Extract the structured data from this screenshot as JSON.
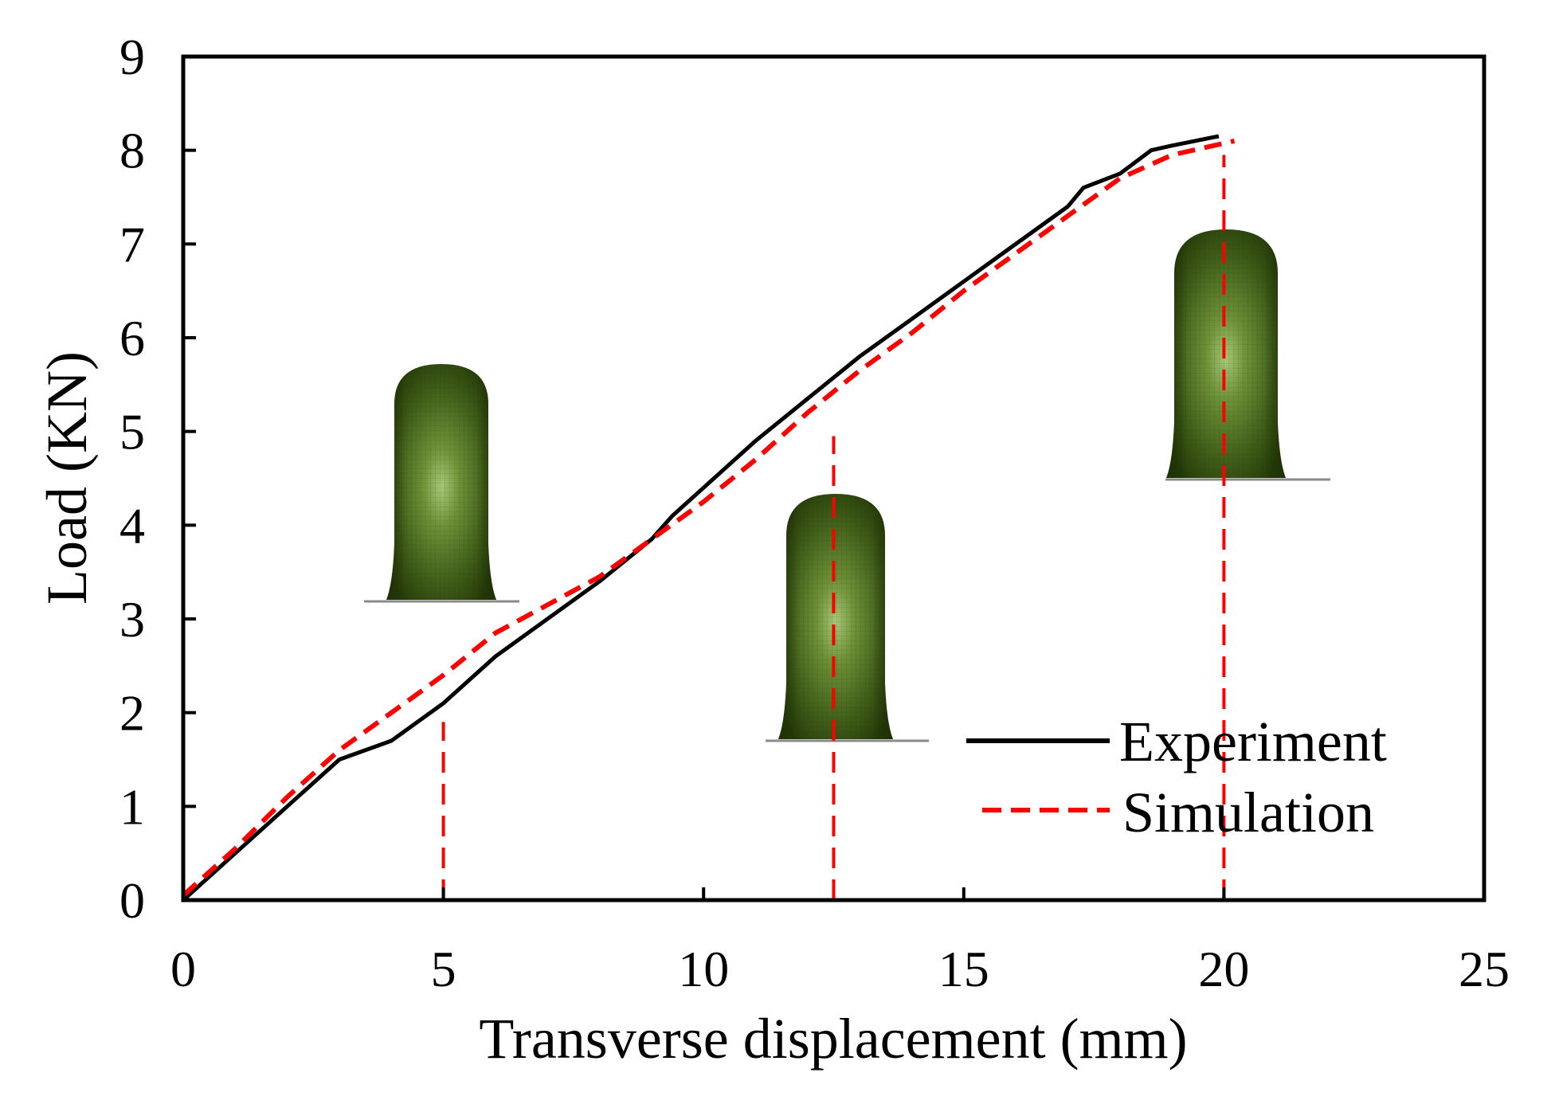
{
  "chart_data": {
    "type": "line",
    "title": "",
    "xlabel": "Transverse displacement (mm)",
    "ylabel": "Load (KN)",
    "xlim": [
      0,
      25
    ],
    "ylim": [
      0,
      9
    ],
    "xticks": [
      0,
      5,
      10,
      15,
      20,
      25
    ],
    "yticks": [
      0,
      1,
      2,
      3,
      4,
      5,
      6,
      7,
      8,
      9
    ],
    "xtick_labels": [
      "0",
      "5",
      "10",
      "15",
      "20",
      "25"
    ],
    "ytick_labels": [
      "0",
      "1",
      "2",
      "3",
      "4",
      "5",
      "6",
      "7",
      "8",
      "9"
    ],
    "grid": false,
    "legend_position": "bottom-right",
    "series": [
      {
        "name": "Experiment",
        "style": "solid",
        "color": "#000000",
        "x": [
          0,
          1,
          2,
          3,
          4,
          5,
          6,
          7,
          8,
          9,
          9.4,
          10,
          11,
          12,
          13,
          14,
          15,
          16,
          17,
          17.3,
          18,
          18.6,
          19,
          19.9
        ],
        "y": [
          0,
          0.5,
          1.0,
          1.5,
          1.7,
          2.1,
          2.6,
          3.0,
          3.4,
          3.85,
          4.1,
          4.4,
          4.9,
          5.35,
          5.8,
          6.2,
          6.6,
          7.0,
          7.4,
          7.6,
          7.75,
          8.0,
          8.05,
          8.15
        ]
      },
      {
        "name": "Simulation",
        "style": "dashed",
        "color": "#ff0000",
        "x": [
          0,
          1,
          2,
          3,
          4,
          5,
          6,
          7,
          8,
          9,
          10,
          11,
          12,
          13,
          14,
          15,
          16,
          17,
          18,
          19,
          20.2
        ],
        "y": [
          0.05,
          0.55,
          1.1,
          1.6,
          2.0,
          2.4,
          2.85,
          3.15,
          3.45,
          3.85,
          4.25,
          4.7,
          5.2,
          5.65,
          6.05,
          6.5,
          6.9,
          7.3,
          7.7,
          7.95,
          8.1
        ]
      }
    ],
    "reference_lines": [
      {
        "x": 5,
        "y_from": 0,
        "y_to": 1.9,
        "color": "#ff0000",
        "style": "dashed"
      },
      {
        "x": 12.5,
        "y_from": 0,
        "y_to": 4.95,
        "color": "#ff0000",
        "style": "dashed"
      },
      {
        "x": 20,
        "y_from": 0,
        "y_to": 7.95,
        "color": "#ff0000",
        "style": "dashed"
      }
    ],
    "insets": [
      {
        "name": "deformed-specimen-at-5mm"
      },
      {
        "name": "deformed-specimen-at-12.5mm"
      },
      {
        "name": "deformed-specimen-at-20mm"
      }
    ]
  }
}
